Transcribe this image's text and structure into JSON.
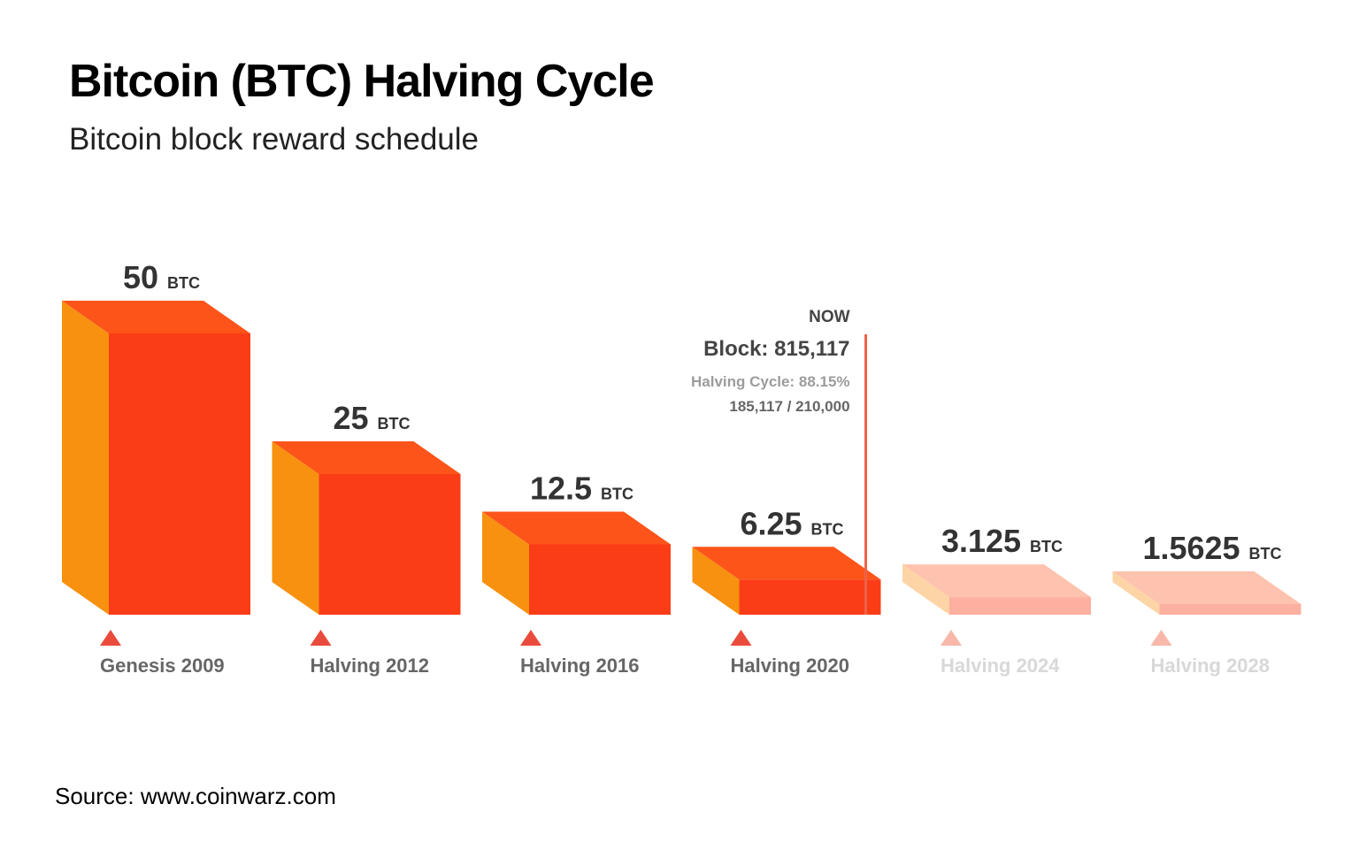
{
  "chart_data": {
    "type": "bar",
    "title": "Bitcoin (BTC) Halving Cycle",
    "subtitle": "Bitcoin block reward schedule",
    "unit": "BTC",
    "categories": [
      "Genesis 2009",
      "Halving 2012",
      "Halving 2016",
      "Halving 2020",
      "Halving 2024",
      "Halving 2028"
    ],
    "values": [
      50,
      25,
      12.5,
      6.25,
      3.125,
      1.5625
    ],
    "value_labels": [
      "50",
      "25",
      "12.5",
      "6.25",
      "3.125",
      "1.5625"
    ],
    "future": [
      false,
      false,
      false,
      false,
      true,
      true
    ],
    "now_marker": {
      "label": "NOW",
      "block": "Block: 815,117",
      "cycle": "Halving Cycle: 88.15%",
      "progress_text": "185,117 / 210,000",
      "category_index": 3,
      "progress": 0.8815
    },
    "colors": {
      "front": "#fb3d17",
      "side": "#f7910f",
      "top": "#fc5419",
      "front_future": "#fdb0a0",
      "side_future": "#fdd4a6",
      "top_future": "#fec3ae",
      "marker": "#e94b3c",
      "marker_future": "#f7b8aa",
      "now_line": "#ee6249"
    }
  },
  "source": "Source: www.coinwarz.com"
}
